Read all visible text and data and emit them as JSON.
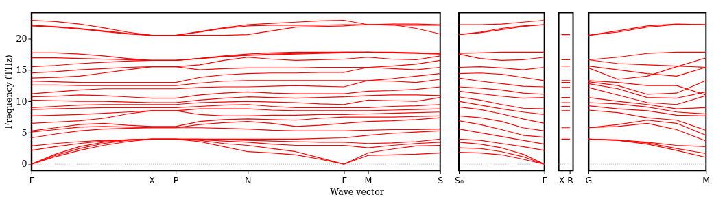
{
  "chart_data": [
    {
      "type": "line",
      "ylabel": "Frequency (THz)",
      "xlabel": "Wave vector",
      "ylim": [
        -1,
        24.1
      ],
      "yticks": [
        0,
        5,
        10,
        15,
        20
      ],
      "grid": false,
      "line_style": "solid",
      "marker": "none",
      "categories": [
        "Γ",
        null,
        null,
        null,
        null,
        "X",
        "P",
        null,
        null,
        "N",
        null,
        null,
        null,
        "Γ",
        "M",
        null,
        null,
        "S"
      ],
      "ref_lines": [
        {
          "axis": "y",
          "value": 0,
          "label": null,
          "color": "#8080c0",
          "line_style": "dotted"
        }
      ],
      "series": [
        {
          "color": "#ff0000",
          "values": [
            0,
            1.2,
            2.2,
            3.0,
            3.6,
            4.0,
            4.0,
            3.6,
            2.8,
            2.0,
            1.8,
            1.5,
            0.8,
            0,
            1.4,
            1.5,
            1.6,
            1.8
          ]
        },
        {
          "color": "#ff0000",
          "values": [
            0,
            1.4,
            2.5,
            3.3,
            3.8,
            4.0,
            4.0,
            3.8,
            3.3,
            3.0,
            2.5,
            2.0,
            1.0,
            0,
            1.8,
            2.4,
            2.9,
            3.0
          ]
        },
        {
          "color": "#ff0000",
          "values": [
            0,
            1.6,
            2.8,
            3.5,
            3.9,
            4.0,
            4.0,
            3.9,
            3.7,
            3.5,
            3.2,
            3.0,
            3.0,
            3.0,
            2.6,
            3.0,
            3.3,
            3.5
          ]
        },
        {
          "color": "#ff0000",
          "values": [
            2.2,
            2.8,
            3.3,
            3.7,
            3.9,
            4.0,
            4.0,
            4.0,
            3.9,
            3.8,
            3.7,
            3.6,
            3.5,
            3.5,
            3.3,
            3.4,
            3.6,
            4.0
          ]
        },
        {
          "color": "#ff0000",
          "values": [
            2.9,
            3.3,
            3.6,
            3.8,
            3.9,
            4.0,
            4.0,
            4.0,
            4.0,
            4.0,
            4.0,
            4.0,
            4.1,
            4.2,
            4.6,
            4.9,
            5.1,
            5.3
          ]
        },
        {
          "color": "#ff0000",
          "values": [
            4.2,
            4.8,
            5.3,
            5.6,
            5.7,
            5.8,
            5.8,
            5.8,
            5.7,
            5.6,
            5.4,
            5.3,
            5.3,
            5.3,
            5.4,
            5.5,
            5.5,
            5.6
          ]
        },
        {
          "color": "#ff0000",
          "values": [
            5.1,
            5.5,
            5.9,
            6.0,
            5.9,
            5.8,
            5.8,
            6.3,
            6.6,
            6.8,
            6.5,
            6.0,
            6.2,
            6.5,
            6.8,
            6.9,
            7.1,
            7.4
          ]
        },
        {
          "color": "#ff0000",
          "values": [
            5.3,
            5.8,
            6.3,
            6.5,
            6.2,
            6.0,
            6.0,
            6.8,
            7.1,
            7.2,
            7.1,
            7.0,
            7.3,
            7.5,
            7.5,
            7.5,
            7.6,
            7.7
          ]
        },
        {
          "color": "#ff0000",
          "values": [
            6.5,
            6.7,
            6.9,
            7.3,
            8.0,
            8.5,
            8.5,
            7.9,
            7.7,
            7.7,
            7.8,
            7.8,
            7.9,
            7.9,
            8.0,
            8.1,
            8.2,
            8.3
          ]
        },
        {
          "color": "#ff0000",
          "values": [
            7.7,
            7.8,
            7.9,
            8.1,
            8.3,
            8.5,
            8.5,
            8.8,
            8.8,
            8.8,
            8.6,
            8.5,
            8.5,
            8.5,
            8.5,
            8.6,
            8.7,
            8.8
          ]
        },
        {
          "color": "#ff0000",
          "values": [
            8.7,
            8.8,
            8.9,
            9.0,
            9.0,
            9.0,
            9.0,
            9.2,
            9.4,
            9.5,
            9.2,
            9.0,
            9.0,
            9.0,
            9.0,
            9.2,
            9.3,
            9.5
          ]
        },
        {
          "color": "#ff0000",
          "values": [
            9.0,
            9.2,
            9.4,
            9.5,
            9.5,
            9.5,
            9.5,
            9.8,
            9.9,
            10.0,
            9.9,
            9.8,
            9.6,
            9.5,
            10.2,
            10.1,
            10.0,
            10.6
          ]
        },
        {
          "color": "#ff0000",
          "values": [
            10.2,
            10.1,
            10.0,
            10.0,
            9.9,
            9.8,
            9.8,
            10.2,
            10.5,
            10.7,
            10.6,
            10.5,
            10.6,
            10.7,
            10.9,
            11.0,
            11.0,
            10.9
          ]
        },
        {
          "color": "#ff0000",
          "values": [
            10.7,
            10.8,
            11.0,
            10.9,
            10.7,
            10.5,
            10.5,
            11.0,
            11.3,
            11.5,
            11.3,
            11.2,
            11.2,
            11.2,
            11.6,
            11.7,
            11.9,
            12.3
          ]
        },
        {
          "color": "#ff0000",
          "values": [
            11.2,
            11.5,
            11.8,
            12.0,
            12.0,
            12.0,
            12.0,
            12.2,
            12.3,
            12.3,
            12.4,
            12.5,
            12.4,
            12.3,
            13.3,
            13.2,
            13.0,
            13.5
          ]
        },
        {
          "color": "#ff0000",
          "values": [
            12.6,
            12.6,
            12.5,
            12.5,
            12.5,
            12.5,
            12.5,
            12.9,
            13.2,
            13.3,
            13.3,
            13.3,
            13.3,
            13.3,
            13.3,
            13.6,
            14.0,
            14.4
          ]
        },
        {
          "color": "#ff0000",
          "values": [
            13.2,
            13.1,
            13.0,
            13.0,
            13.0,
            13.0,
            13.0,
            13.8,
            14.2,
            14.4,
            14.5,
            14.5,
            14.6,
            14.6,
            15.4,
            15.2,
            15.0,
            15.4
          ]
        },
        {
          "color": "#ff0000",
          "values": [
            13.7,
            13.8,
            14.0,
            14.5,
            15.0,
            15.5,
            15.5,
            15.0,
            15.2,
            15.3,
            15.3,
            15.3,
            15.4,
            15.4,
            15.4,
            15.6,
            15.9,
            16.5
          ]
        },
        {
          "color": "#ff0000",
          "values": [
            14.5,
            14.7,
            15.0,
            15.2,
            15.4,
            15.5,
            15.5,
            15.8,
            16.5,
            17.0,
            16.7,
            16.5,
            16.6,
            16.7,
            17.0,
            16.7,
            16.6,
            17.2
          ]
        },
        {
          "color": "#ff0000",
          "values": [
            15.5,
            15.7,
            16.0,
            16.2,
            16.4,
            16.5,
            16.5,
            16.8,
            17.2,
            17.5,
            17.7,
            17.8,
            17.8,
            17.8,
            17.8,
            17.7,
            17.7,
            17.6
          ]
        },
        {
          "color": "#ff0000",
          "values": [
            16.9,
            16.9,
            16.8,
            16.7,
            16.6,
            16.5,
            16.5,
            16.8,
            17.1,
            17.3,
            17.4,
            17.5,
            17.6,
            17.7,
            17.8,
            17.8,
            17.7,
            17.6
          ]
        },
        {
          "color": "#ff0000",
          "values": [
            17.7,
            17.7,
            17.5,
            17.2,
            16.8,
            16.5,
            16.5,
            16.8,
            17.1,
            17.3,
            17.5,
            17.6,
            17.7,
            17.8,
            17.8,
            17.7,
            17.6,
            17.5
          ]
        },
        {
          "color": "#ff0000",
          "values": [
            22.0,
            21.8,
            21.5,
            21.1,
            20.7,
            20.5,
            20.5,
            20.5,
            20.5,
            20.6,
            21.2,
            21.8,
            21.9,
            22.0,
            22.2,
            22.2,
            21.6,
            20.7
          ]
        },
        {
          "color": "#ff0000",
          "values": [
            22.1,
            21.9,
            21.6,
            21.2,
            20.8,
            20.5,
            20.5,
            21.0,
            21.6,
            22.0,
            22.1,
            22.1,
            22.1,
            22.2,
            22.2,
            22.3,
            22.3,
            22.2
          ]
        },
        {
          "color": "#ff0000",
          "values": [
            22.9,
            22.7,
            22.3,
            21.7,
            21.0,
            20.5,
            20.5,
            21.1,
            21.7,
            22.2,
            22.4,
            22.6,
            22.8,
            22.9,
            22.2,
            22.1,
            22.1,
            22.1
          ]
        }
      ]
    },
    {
      "type": "line",
      "ylim": [
        -1,
        24.1
      ],
      "yticks": [
        0,
        5,
        10,
        15,
        20
      ],
      "grid": false,
      "tick_labels": "x",
      "line_style": "solid",
      "marker": "none",
      "categories": [
        "S₀",
        null,
        null,
        null,
        "Γ"
      ],
      "ref_lines": [
        {
          "axis": "y",
          "value": 0,
          "label": null,
          "color": "#8080c0",
          "line_style": "dotted"
        }
      ],
      "series": [
        {
          "color": "#ff0000",
          "values": [
            1.9,
            1.8,
            1.5,
            0.8,
            0
          ]
        },
        {
          "color": "#ff0000",
          "values": [
            2.6,
            2.5,
            2.0,
            1.2,
            0
          ]
        },
        {
          "color": "#ff0000",
          "values": [
            3.5,
            3.2,
            2.6,
            1.6,
            0
          ]
        },
        {
          "color": "#ff0000",
          "values": [
            4.0,
            3.8,
            3.3,
            2.8,
            2.2
          ]
        },
        {
          "color": "#ff0000",
          "values": [
            5.6,
            5.0,
            4.4,
            3.8,
            3.2
          ]
        },
        {
          "color": "#ff0000",
          "values": [
            6.9,
            6.3,
            5.5,
            4.6,
            4.3
          ]
        },
        {
          "color": "#ff0000",
          "values": [
            7.7,
            7.4,
            6.8,
            5.8,
            5.3
          ]
        },
        {
          "color": "#ff0000",
          "values": [
            9.1,
            8.7,
            8.0,
            7.2,
            6.5
          ]
        },
        {
          "color": "#ff0000",
          "values": [
            10.0,
            9.4,
            8.8,
            8.3,
            7.9
          ]
        },
        {
          "color": "#ff0000",
          "values": [
            10.7,
            10.2,
            9.5,
            8.9,
            8.8
          ]
        },
        {
          "color": "#ff0000",
          "values": [
            11.6,
            11.2,
            10.8,
            10.5,
            10.6
          ]
        },
        {
          "color": "#ff0000",
          "values": [
            12.3,
            12.1,
            11.8,
            11.3,
            11.1
          ]
        },
        {
          "color": "#ff0000",
          "values": [
            13.7,
            13.2,
            12.8,
            12.4,
            12.3
          ]
        },
        {
          "color": "#ff0000",
          "values": [
            14.4,
            14.5,
            14.3,
            13.8,
            13.3
          ]
        },
        {
          "color": "#ff0000",
          "values": [
            15.4,
            15.5,
            15.3,
            15.0,
            15.4
          ]
        },
        {
          "color": "#ff0000",
          "values": [
            17.5,
            16.8,
            16.5,
            16.6,
            17.0
          ]
        },
        {
          "color": "#ff0000",
          "values": [
            17.6,
            17.7,
            17.8,
            17.8,
            17.8
          ]
        },
        {
          "color": "#ff0000",
          "values": [
            20.6,
            20.9,
            21.4,
            21.9,
            22.2
          ]
        },
        {
          "color": "#ff0000",
          "values": [
            20.6,
            21.0,
            21.6,
            22.0,
            22.2
          ]
        },
        {
          "color": "#ff0000",
          "values": [
            22.2,
            22.2,
            22.3,
            22.6,
            22.9
          ]
        }
      ]
    },
    {
      "type": "line",
      "ylim": [
        -1,
        24.1
      ],
      "yticks": [
        0,
        5,
        10,
        15,
        20
      ],
      "grid": false,
      "tick_labels": "x",
      "line_style": "solid",
      "marker": "none",
      "categories": [
        "X",
        "R"
      ],
      "ref_lines": [
        {
          "axis": "y",
          "value": 0,
          "label": null,
          "color": "#8080c0",
          "line_style": "dotted"
        }
      ],
      "series": [
        {
          "color": "#ff0000",
          "values": [
            4.0,
            4.0
          ]
        },
        {
          "color": "#ff0000",
          "values": [
            5.8,
            5.8
          ]
        },
        {
          "color": "#ff0000",
          "values": [
            8.5,
            8.5
          ]
        },
        {
          "color": "#ff0000",
          "values": [
            9.2,
            9.2
          ]
        },
        {
          "color": "#ff0000",
          "values": [
            9.8,
            9.8
          ]
        },
        {
          "color": "#ff0000",
          "values": [
            10.6,
            10.6
          ]
        },
        {
          "color": "#ff0000",
          "values": [
            12.2,
            12.2
          ]
        },
        {
          "color": "#ff0000",
          "values": [
            13.0,
            13.0
          ]
        },
        {
          "color": "#ff0000",
          "values": [
            13.3,
            13.3
          ]
        },
        {
          "color": "#ff0000",
          "values": [
            15.6,
            15.6
          ]
        },
        {
          "color": "#ff0000",
          "values": [
            16.6,
            16.6
          ]
        },
        {
          "color": "#ff0000",
          "values": [
            20.6,
            20.6
          ]
        }
      ]
    },
    {
      "type": "line",
      "ylim": [
        -1,
        24.1
      ],
      "yticks": [
        0,
        5,
        10,
        15,
        20
      ],
      "grid": false,
      "tick_labels": "x",
      "line_style": "solid",
      "marker": "none",
      "categories": [
        "G",
        null,
        null,
        null,
        "M"
      ],
      "ref_lines": [
        {
          "axis": "y",
          "value": 0,
          "label": null,
          "color": "#8080c0",
          "line_style": "dotted"
        }
      ],
      "series": [
        {
          "color": "#ff0000",
          "values": [
            4.0,
            3.8,
            3.2,
            2.2,
            1.1
          ]
        },
        {
          "color": "#ff0000",
          "values": [
            4.0,
            3.8,
            3.4,
            2.5,
            1.7
          ]
        },
        {
          "color": "#ff0000",
          "values": [
            4.0,
            3.9,
            3.5,
            3.0,
            2.8
          ]
        },
        {
          "color": "#ff0000",
          "values": [
            5.8,
            6.0,
            6.5,
            5.5,
            3.7
          ]
        },
        {
          "color": "#ff0000",
          "values": [
            5.8,
            6.3,
            7.0,
            6.5,
            4.6
          ]
        },
        {
          "color": "#ff0000",
          "values": [
            8.6,
            8.2,
            7.4,
            7.0,
            5.4
          ]
        },
        {
          "color": "#ff0000",
          "values": [
            9.3,
            8.8,
            8.5,
            7.8,
            7.7
          ]
        },
        {
          "color": "#ff0000",
          "values": [
            9.8,
            9.6,
            9.1,
            8.3,
            8.0
          ]
        },
        {
          "color": "#ff0000",
          "values": [
            10.6,
            10.0,
            9.5,
            8.8,
            9.0
          ]
        },
        {
          "color": "#ff0000",
          "values": [
            12.2,
            11.0,
            9.8,
            9.5,
            10.9
          ]
        },
        {
          "color": "#ff0000",
          "values": [
            12.8,
            12.0,
            10.6,
            10.5,
            11.5
          ]
        },
        {
          "color": "#ff0000",
          "values": [
            13.1,
            12.5,
            11.1,
            11.3,
            13.3
          ]
        },
        {
          "color": "#ff0000",
          "values": [
            13.3,
            13.0,
            12.5,
            12.5,
            11.0
          ]
        },
        {
          "color": "#ff0000",
          "values": [
            15.3,
            13.5,
            14.0,
            15.5,
            16.9
          ]
        },
        {
          "color": "#ff0000",
          "values": [
            15.6,
            15.0,
            14.4,
            14.0,
            15.4
          ]
        },
        {
          "color": "#ff0000",
          "values": [
            16.6,
            16.0,
            15.8,
            15.6,
            15.4
          ]
        },
        {
          "color": "#ff0000",
          "values": [
            16.6,
            17.0,
            17.6,
            17.8,
            17.8
          ]
        },
        {
          "color": "#ff0000",
          "values": [
            20.5,
            21.0,
            21.8,
            22.2,
            22.2
          ]
        },
        {
          "color": "#ff0000",
          "values": [
            20.5,
            21.2,
            22.0,
            22.3,
            22.2
          ]
        }
      ]
    }
  ]
}
